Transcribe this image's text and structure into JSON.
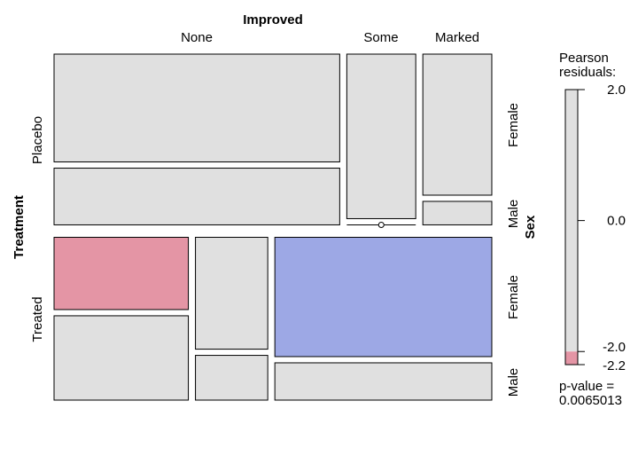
{
  "chart_data": {
    "type": "mosaic",
    "top_variable": "Improved",
    "left_variable": "Treatment",
    "right_variable": "Sex",
    "columns": [
      "None",
      "Some",
      "Marked"
    ],
    "rows": [
      "Placebo",
      "Treated"
    ],
    "sub_rows": [
      "Female",
      "Male"
    ],
    "cells": [
      {
        "treatment": "Placebo",
        "improved": "None",
        "sex": "Female",
        "count": 19,
        "fill": "#e0e0e0"
      },
      {
        "treatment": "Placebo",
        "improved": "None",
        "sex": "Male",
        "count": 10,
        "fill": "#e0e0e0"
      },
      {
        "treatment": "Placebo",
        "improved": "Some",
        "sex": "Female",
        "count": 7,
        "fill": "#e0e0e0"
      },
      {
        "treatment": "Placebo",
        "improved": "Some",
        "sex": "Male",
        "count": 0,
        "fill": "#e0e0e0"
      },
      {
        "treatment": "Placebo",
        "improved": "Marked",
        "sex": "Female",
        "count": 6,
        "fill": "#e0e0e0"
      },
      {
        "treatment": "Placebo",
        "improved": "Marked",
        "sex": "Male",
        "count": 1,
        "fill": "#e0e0e0"
      },
      {
        "treatment": "Treated",
        "improved": "None",
        "sex": "Female",
        "count": 6,
        "fill": "#e495a5"
      },
      {
        "treatment": "Treated",
        "improved": "None",
        "sex": "Male",
        "count": 7,
        "fill": "#e0e0e0"
      },
      {
        "treatment": "Treated",
        "improved": "Some",
        "sex": "Female",
        "count": 5,
        "fill": "#e0e0e0"
      },
      {
        "treatment": "Treated",
        "improved": "Some",
        "sex": "Male",
        "count": 2,
        "fill": "#e0e0e0"
      },
      {
        "treatment": "Treated",
        "improved": "Marked",
        "sex": "Female",
        "count": 16,
        "fill": "#9da8e5"
      },
      {
        "treatment": "Treated",
        "improved": "Marked",
        "sex": "Male",
        "count": 5,
        "fill": "#e0e0e0"
      }
    ],
    "legend": {
      "title_line1": "Pearson",
      "title_line2": "residuals:",
      "ticks": [
        "2.0",
        "0.0",
        "-2.0",
        "-2.2"
      ],
      "tick_values": [
        2.0,
        0.0,
        -2.0,
        -2.2
      ],
      "range": [
        -2.2,
        2.0
      ],
      "positive_color": "#9da8e5",
      "negative_color": "#e495a5",
      "neutral_color": "#e0e0e0",
      "pvalue_line1": "p-value =",
      "pvalue_line2": "0.0065013"
    }
  }
}
